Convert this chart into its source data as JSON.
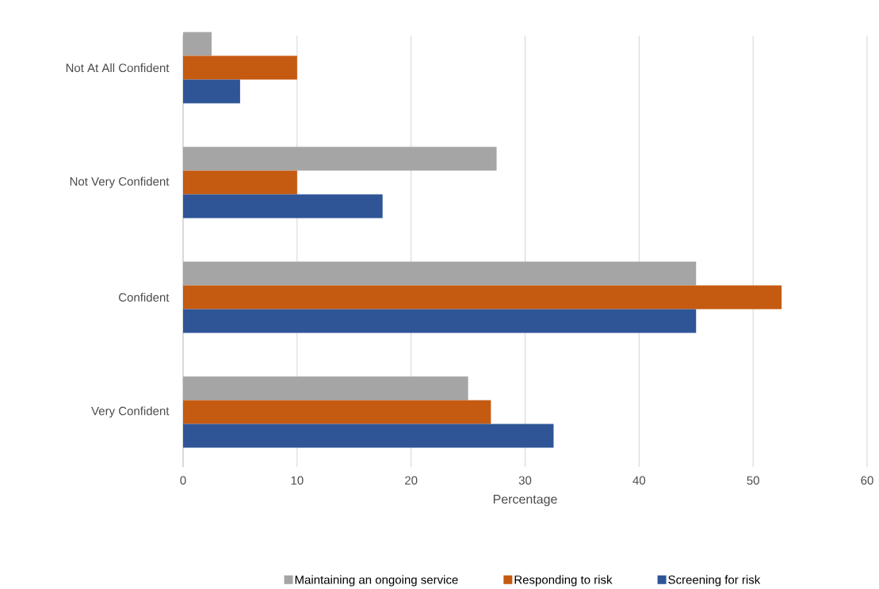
{
  "chart_data": {
    "type": "bar",
    "orientation": "horizontal",
    "xlabel": "Percentage",
    "categories": [
      "Not At All Confident",
      "Not Very Confident",
      "Confident",
      "Very Confident"
    ],
    "series": [
      {
        "name": "Maintaining an ongoing service",
        "color": "#a5a5a5",
        "values": [
          2.5,
          27.5,
          45,
          25
        ]
      },
      {
        "name": "Responding to risk",
        "color": "#c55a11",
        "values": [
          10,
          10,
          52.5,
          27
        ]
      },
      {
        "name": "Screening for risk",
        "color": "#2f5597",
        "values": [
          5,
          17.5,
          45,
          32.5
        ]
      }
    ],
    "xlim": [
      0,
      60
    ],
    "xticks": [
      0,
      10,
      20,
      30,
      40,
      50,
      60
    ],
    "grid": "x",
    "legend": "bottom"
  }
}
